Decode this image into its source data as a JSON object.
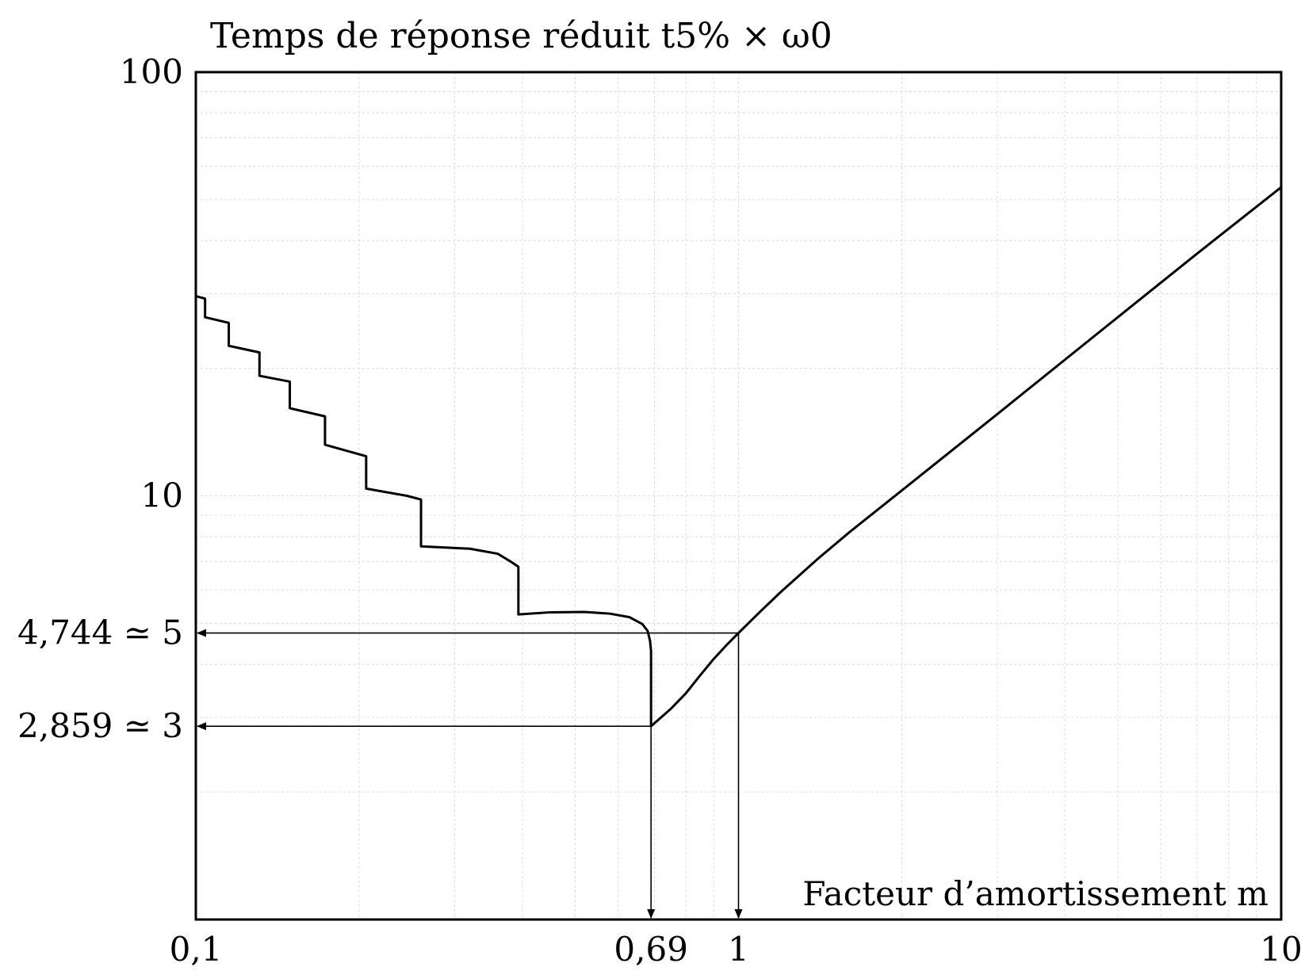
{
  "chart_data": {
    "type": "line",
    "title": "",
    "ylabel": "Temps de réponse réduit t5% × ω0",
    "xlabel": "Facteur d’amortissement m",
    "xscale": "log",
    "yscale": "log",
    "xlim": [
      0.1,
      10
    ],
    "ylim": [
      1,
      100
    ],
    "grid": true,
    "legend": "none",
    "x_ticks": [
      {
        "value": 0.1,
        "label": "0,1"
      },
      {
        "value": 0.69,
        "label": "0,69"
      },
      {
        "value": 1,
        "label": "1"
      },
      {
        "value": 10,
        "label": "10"
      }
    ],
    "y_ticks": [
      {
        "value": 100,
        "label": "100"
      },
      {
        "value": 10,
        "label": "10"
      },
      {
        "value": 4.744,
        "label": "4,744 ≃ 5"
      },
      {
        "value": 2.859,
        "label": "2,859 ≃ 3"
      }
    ],
    "annotations": [
      {
        "from": [
          1,
          4.744
        ],
        "to_axis": "y",
        "text": "4,744 ≃ 5"
      },
      {
        "from": [
          1,
          4.744
        ],
        "to_axis": "x",
        "text": "1"
      },
      {
        "from": [
          0.69,
          2.859
        ],
        "to_axis": "y",
        "text": "2,859 ≃ 3"
      },
      {
        "from": [
          0.69,
          2.859
        ],
        "to_axis": "x",
        "text": "0,69"
      }
    ],
    "series": [
      {
        "segments": [
          [
            [
              0.1,
              29.6
            ],
            [
              0.104,
              29.2
            ]
          ],
          [
            [
              0.104,
              26.4
            ],
            [
              0.115,
              25.6
            ]
          ],
          [
            [
              0.115,
              22.6
            ],
            [
              0.131,
              21.8
            ]
          ],
          [
            [
              0.131,
              19.2
            ],
            [
              0.149,
              18.6
            ]
          ],
          [
            [
              0.149,
              16.1
            ],
            [
              0.173,
              15.4
            ]
          ],
          [
            [
              0.173,
              13.2
            ],
            [
              0.206,
              12.4
            ]
          ],
          [
            [
              0.206,
              10.4
            ],
            [
              0.245,
              10.0
            ],
            [
              0.26,
              9.8
            ]
          ],
          [
            [
              0.26,
              7.6
            ],
            [
              0.32,
              7.5
            ],
            [
              0.36,
              7.3
            ],
            [
              0.38,
              7.0
            ],
            [
              0.393,
              6.8
            ]
          ],
          [
            [
              0.393,
              5.25
            ],
            [
              0.45,
              5.31
            ],
            [
              0.52,
              5.32
            ],
            [
              0.58,
              5.27
            ],
            [
              0.63,
              5.17
            ],
            [
              0.665,
              4.98
            ],
            [
              0.68,
              4.8
            ],
            [
              0.687,
              4.55
            ],
            [
              0.69,
              4.3
            ]
          ],
          [
            [
              0.69,
              4.3
            ],
            [
              0.69,
              2.859
            ],
            [
              0.75,
              3.14
            ],
            [
              0.8,
              3.42
            ],
            [
              0.85,
              3.77
            ],
            [
              0.9,
              4.12
            ],
            [
              0.95,
              4.44
            ],
            [
              1.0,
              4.744
            ],
            [
              1.1,
              5.35
            ],
            [
              1.2,
              5.95
            ],
            [
              1.4,
              7.1
            ],
            [
              1.6,
              8.2
            ],
            [
              2.0,
              10.3
            ],
            [
              3.0,
              15.6
            ],
            [
              5.0,
              26.4
            ],
            [
              7.0,
              37.3
            ],
            [
              10.0,
              53.5
            ]
          ]
        ]
      }
    ]
  }
}
